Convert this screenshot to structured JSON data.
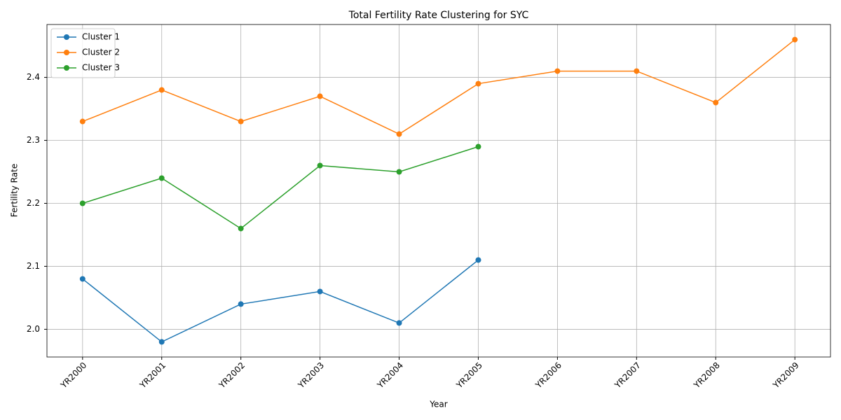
{
  "chart_data": {
    "type": "line",
    "title": "Total Fertility Rate Clustering for SYC",
    "x_label": "Year",
    "y_label": "Fertility Rate",
    "categories": [
      "YR2000",
      "YR2001",
      "YR2002",
      "YR2003",
      "YR2004",
      "YR2005",
      "YR2006",
      "YR2007",
      "YR2008",
      "YR2009"
    ],
    "series": [
      {
        "name": "Cluster 1",
        "color": "#1f77b4",
        "values": [
          2.08,
          1.98,
          2.04,
          2.06,
          2.01,
          2.11,
          null,
          null,
          null,
          null
        ]
      },
      {
        "name": "Cluster 2",
        "color": "#ff7f0e",
        "values": [
          2.33,
          2.38,
          2.33,
          2.37,
          2.31,
          2.39,
          2.41,
          2.41,
          2.36,
          2.46
        ]
      },
      {
        "name": "Cluster 3",
        "color": "#2ca02c",
        "values": [
          2.2,
          2.24,
          2.16,
          2.26,
          2.25,
          2.29,
          null,
          null,
          null,
          null
        ]
      }
    ],
    "ylim": [
      1.956,
      2.484
    ],
    "yticks": [
      {
        "value": 2.0,
        "label": "2.0"
      },
      2.1,
      2.2,
      2.3,
      2.4
    ],
    "grid": true,
    "legend": "upper left"
  }
}
